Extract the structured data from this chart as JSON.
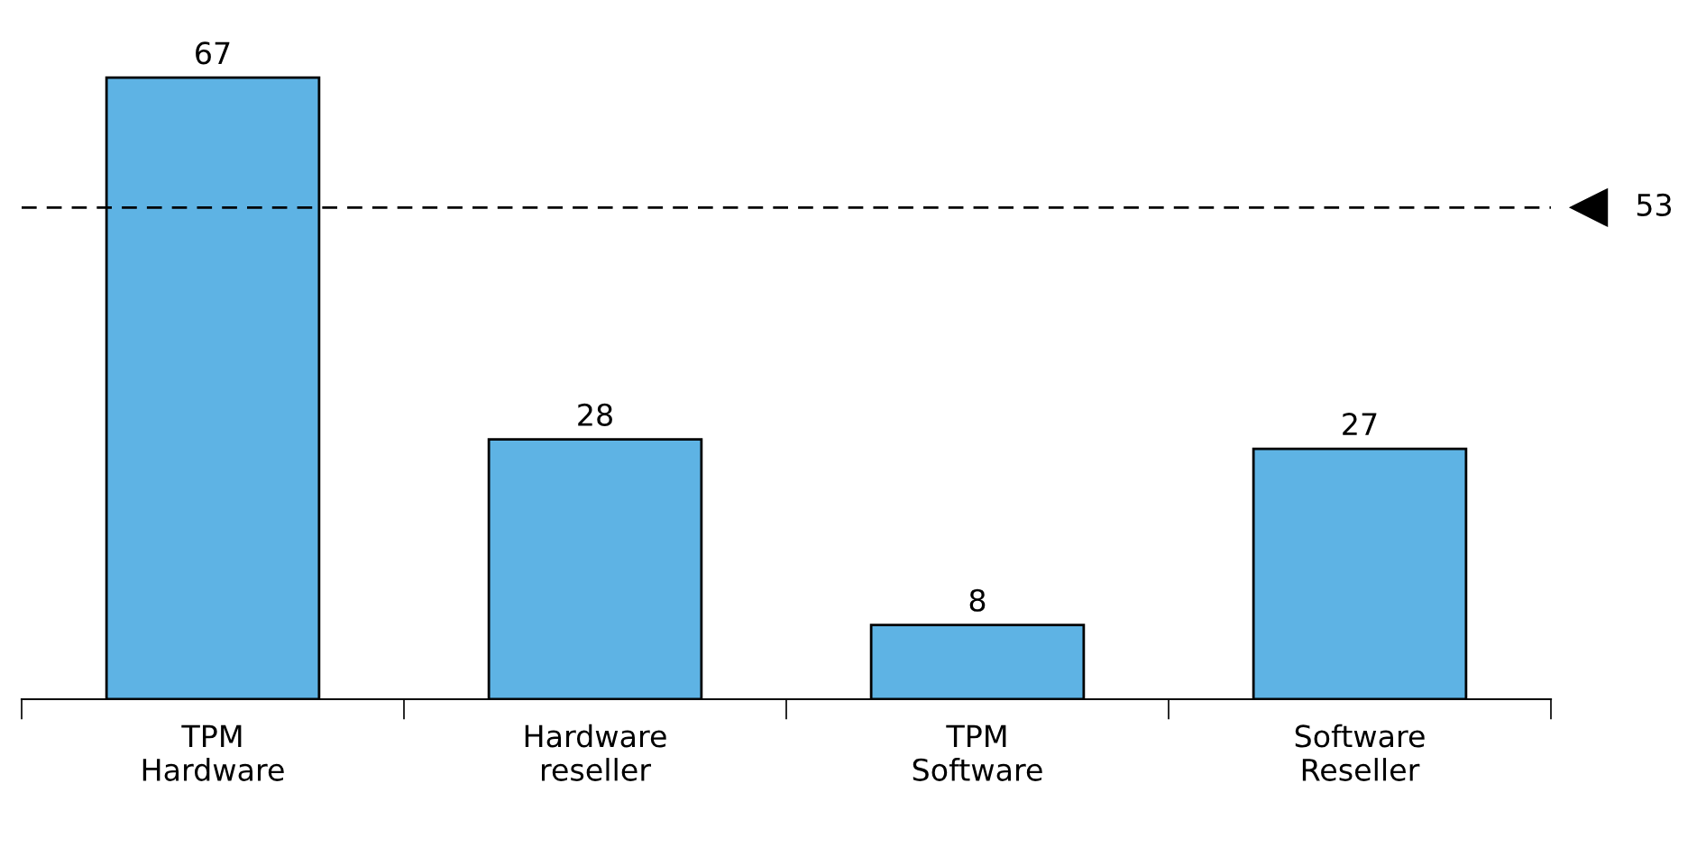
{
  "chart_data": {
    "type": "bar",
    "categories": [
      "TPM\nHardware",
      "Hardware\nreseller",
      "TPM\nSoftware",
      "Software\nReseller"
    ],
    "values": [
      67,
      28,
      8,
      27
    ],
    "color": "#5eb3e4",
    "data_labels": true,
    "ref_lines": [
      {
        "axis": "y",
        "value": 53,
        "label": "53",
        "color": "#000000",
        "line_style": "dashed"
      }
    ]
  }
}
